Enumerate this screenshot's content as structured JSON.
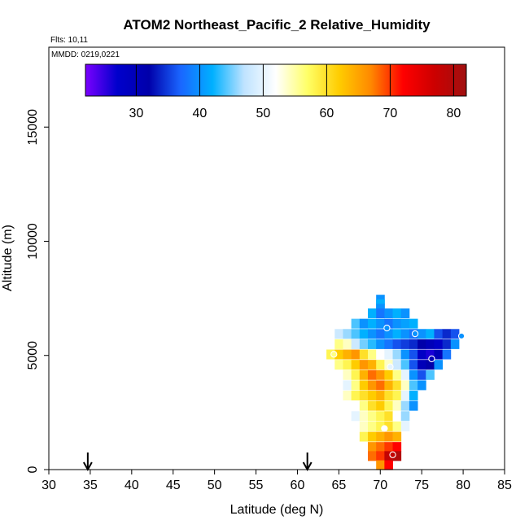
{
  "chart_data": {
    "type": "heatmap",
    "title": "ATOM2 Northeast_Pacific_2 Relative_Humidity",
    "subtitle_flights": "Flts: 10,11",
    "subtitle_dates": "MMDD: 0219,0221",
    "xlabel": "Latitude (deg N)",
    "ylabel": "Altitude (m)",
    "xlim": [
      30,
      85
    ],
    "ylim": [
      0,
      18500
    ],
    "x_ticks": [
      "30",
      "35",
      "40",
      "45",
      "50",
      "55",
      "60",
      "65",
      "70",
      "75",
      "80",
      "85"
    ],
    "y_ticks": [
      "0",
      "5000",
      "10000",
      "15000"
    ],
    "colorbar": {
      "range": [
        22,
        82
      ],
      "ticks": [
        "30",
        "40",
        "50",
        "60",
        "70",
        "80"
      ],
      "stops": [
        "#7b00ff",
        "#0000cc",
        "#0000aa",
        "#1a66ff",
        "#00b0ff",
        "#bfe3ff",
        "#ffffff",
        "#ffff66",
        "#ffcc00",
        "#ff8800",
        "#ff0000",
        "#cc0000",
        "#a01010"
      ]
    },
    "arrows_lat": [
      34.7,
      61.2
    ],
    "cells": [
      [
        70,
        7450,
        40
      ],
      [
        70,
        7250,
        42
      ],
      [
        70,
        7050,
        40
      ],
      [
        69,
        6850,
        42
      ],
      [
        70,
        6850,
        38
      ],
      [
        71,
        6850,
        40
      ],
      [
        72,
        6850,
        42
      ],
      [
        73,
        6850,
        40
      ],
      [
        67,
        6400,
        44
      ],
      [
        68,
        6400,
        40
      ],
      [
        69,
        6400,
        42
      ],
      [
        70,
        6400,
        40
      ],
      [
        71,
        6400,
        38
      ],
      [
        72,
        6400,
        40
      ],
      [
        73,
        6400,
        41
      ],
      [
        74,
        6400,
        42
      ],
      [
        65,
        5950,
        48
      ],
      [
        66,
        5950,
        46
      ],
      [
        67,
        5950,
        44
      ],
      [
        68,
        5950,
        42
      ],
      [
        69,
        5950,
        40
      ],
      [
        70,
        5950,
        38
      ],
      [
        71,
        5950,
        40
      ],
      [
        72,
        5950,
        42
      ],
      [
        73,
        5950,
        40
      ],
      [
        74,
        5950,
        38
      ],
      [
        75,
        5950,
        40
      ],
      [
        76,
        5950,
        42
      ],
      [
        77,
        5950,
        36
      ],
      [
        78,
        5950,
        34
      ],
      [
        79,
        5950,
        36
      ],
      [
        64,
        5500,
        52
      ],
      [
        65,
        5500,
        56
      ],
      [
        66,
        5500,
        54
      ],
      [
        67,
        5500,
        48
      ],
      [
        68,
        5500,
        45
      ],
      [
        69,
        5500,
        43
      ],
      [
        70,
        5500,
        40
      ],
      [
        71,
        5500,
        38
      ],
      [
        72,
        5500,
        36
      ],
      [
        73,
        5500,
        35
      ],
      [
        74,
        5500,
        34
      ],
      [
        75,
        5500,
        32
      ],
      [
        76,
        5500,
        30
      ],
      [
        77,
        5500,
        28
      ],
      [
        78,
        5500,
        34
      ],
      [
        79,
        5500,
        40
      ],
      [
        64,
        5050,
        58
      ],
      [
        65,
        5050,
        62
      ],
      [
        66,
        5050,
        64
      ],
      [
        67,
        5050,
        66
      ],
      [
        68,
        5050,
        60
      ],
      [
        69,
        5050,
        56
      ],
      [
        70,
        5050,
        52
      ],
      [
        71,
        5050,
        50
      ],
      [
        72,
        5050,
        46
      ],
      [
        73,
        5050,
        40
      ],
      [
        74,
        5050,
        36
      ],
      [
        75,
        5050,
        28
      ],
      [
        76,
        5050,
        26
      ],
      [
        77,
        5050,
        30
      ],
      [
        78,
        5050,
        38
      ],
      [
        65,
        4600,
        56
      ],
      [
        66,
        4600,
        58
      ],
      [
        67,
        4600,
        62
      ],
      [
        68,
        4600,
        66
      ],
      [
        69,
        4600,
        64
      ],
      [
        70,
        4600,
        58
      ],
      [
        71,
        4600,
        54
      ],
      [
        72,
        4600,
        48
      ],
      [
        73,
        4600,
        44
      ],
      [
        74,
        4600,
        36
      ],
      [
        75,
        4600,
        30
      ],
      [
        76,
        4600,
        32
      ],
      [
        77,
        4600,
        40
      ],
      [
        65,
        4150,
        52
      ],
      [
        66,
        4150,
        54
      ],
      [
        67,
        4150,
        58
      ],
      [
        68,
        4150,
        64
      ],
      [
        69,
        4150,
        68
      ],
      [
        70,
        4150,
        66
      ],
      [
        71,
        4150,
        62
      ],
      [
        72,
        4150,
        56
      ],
      [
        73,
        4150,
        50
      ],
      [
        74,
        4150,
        40
      ],
      [
        75,
        4150,
        36
      ],
      [
        76,
        4150,
        44
      ],
      [
        66,
        3700,
        50
      ],
      [
        67,
        3700,
        56
      ],
      [
        68,
        3700,
        62
      ],
      [
        69,
        3700,
        66
      ],
      [
        70,
        3700,
        68
      ],
      [
        71,
        3700,
        64
      ],
      [
        72,
        3700,
        60
      ],
      [
        73,
        3700,
        54
      ],
      [
        74,
        3700,
        44
      ],
      [
        75,
        3700,
        40
      ],
      [
        66,
        3250,
        54
      ],
      [
        67,
        3250,
        58
      ],
      [
        68,
        3250,
        60
      ],
      [
        69,
        3250,
        62
      ],
      [
        70,
        3250,
        64
      ],
      [
        71,
        3250,
        60
      ],
      [
        72,
        3250,
        58
      ],
      [
        73,
        3250,
        50
      ],
      [
        74,
        3250,
        42
      ],
      [
        67,
        2800,
        52
      ],
      [
        68,
        2800,
        56
      ],
      [
        69,
        2800,
        60
      ],
      [
        70,
        2800,
        62
      ],
      [
        71,
        2800,
        58
      ],
      [
        72,
        2800,
        54
      ],
      [
        73,
        2800,
        46
      ],
      [
        74,
        2800,
        40
      ],
      [
        67,
        2350,
        50
      ],
      [
        68,
        2350,
        54
      ],
      [
        69,
        2350,
        56
      ],
      [
        70,
        2350,
        58
      ],
      [
        71,
        2350,
        60
      ],
      [
        72,
        2350,
        52
      ],
      [
        73,
        2350,
        46
      ],
      [
        68,
        1900,
        54
      ],
      [
        69,
        1900,
        56
      ],
      [
        70,
        1900,
        58
      ],
      [
        71,
        1900,
        60
      ],
      [
        72,
        1900,
        56
      ],
      [
        73,
        1900,
        50
      ],
      [
        68,
        1450,
        58
      ],
      [
        69,
        1450,
        62
      ],
      [
        70,
        1450,
        64
      ],
      [
        71,
        1450,
        66
      ],
      [
        72,
        1450,
        64
      ],
      [
        69,
        1000,
        66
      ],
      [
        70,
        1000,
        68
      ],
      [
        71,
        1000,
        70
      ],
      [
        72,
        1000,
        72
      ],
      [
        69,
        600,
        68
      ],
      [
        70,
        600,
        70
      ],
      [
        71,
        600,
        78
      ],
      [
        72,
        600,
        80
      ],
      [
        70,
        200,
        66
      ],
      [
        71,
        200,
        72
      ]
    ],
    "circles": [
      [
        70.8,
        6200,
        40
      ],
      [
        74.2,
        5950,
        40
      ],
      [
        79.8,
        5850,
        40
      ],
      [
        76.2,
        4850,
        30
      ],
      [
        71.2,
        4500,
        50
      ],
      [
        64.4,
        5050,
        56
      ],
      [
        70.5,
        1800,
        52
      ],
      [
        71.5,
        650,
        78
      ]
    ]
  }
}
